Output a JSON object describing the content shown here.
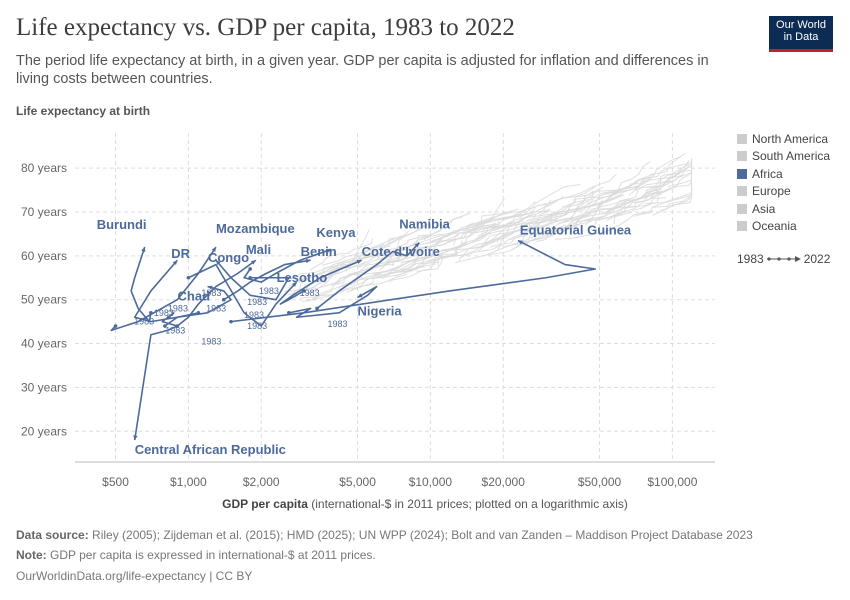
{
  "header": {
    "title": "Life expectancy vs. GDP per capita, 1983 to 2022",
    "subtitle": "The period life expectancy at birth, in a given year. GDP per capita is adjusted for inflation and differences in living costs between countries.",
    "logo_line1": "Our World",
    "logo_line2": "in Data"
  },
  "chart_data": {
    "type": "scatter",
    "ylabel": "Life expectancy at birth",
    "xlabel_bold": "GDP per capita",
    "xlabel_rest": " (international-$ in 2011 prices; plotted on a logarithmic axis)",
    "x_scale": "log",
    "xlim": [
      340,
      150000
    ],
    "ylim": [
      13,
      88
    ],
    "x_ticks": [
      {
        "value": 500,
        "label": "$500"
      },
      {
        "value": 1000,
        "label": "$1,000"
      },
      {
        "value": 2000,
        "label": "$2,000"
      },
      {
        "value": 5000,
        "label": "$5,000"
      },
      {
        "value": 10000,
        "label": "$10,000"
      },
      {
        "value": 20000,
        "label": "$20,000"
      },
      {
        "value": 50000,
        "label": "$50,000"
      },
      {
        "value": 100000,
        "label": "$100,000"
      }
    ],
    "y_ticks": [
      {
        "value": 20,
        "label": "20 years"
      },
      {
        "value": 30,
        "label": "30 years"
      },
      {
        "value": 40,
        "label": "40 years"
      },
      {
        "value": 50,
        "label": "50 years"
      },
      {
        "value": 60,
        "label": "60 years"
      },
      {
        "value": 70,
        "label": "70 years"
      },
      {
        "value": 80,
        "label": "80 years"
      }
    ],
    "grid": true,
    "legend_position": "right",
    "legend": [
      {
        "name": "North America",
        "color": "#cccccc"
      },
      {
        "name": "South America",
        "color": "#cccccc"
      },
      {
        "name": "Africa",
        "color": "#4c6a9c"
      },
      {
        "name": "Europe",
        "color": "#cccccc"
      },
      {
        "name": "Asia",
        "color": "#cccccc"
      },
      {
        "name": "Oceania",
        "color": "#cccccc"
      }
    ],
    "time_start": "1983",
    "time_end": "2022",
    "highlight_color": "#4c6a9c",
    "background_color": "#d9d9d9",
    "series": [
      {
        "name": "Central African Republic",
        "x": [
          830,
          870,
          780,
          900,
          820,
          700,
          600
        ],
        "y": [
          46,
          47,
          45,
          44,
          43,
          42,
          18
        ]
      },
      {
        "name": "Equatorial Guinea",
        "x": [
          1500,
          3000,
          12000,
          30000,
          48000,
          36000,
          23000
        ],
        "y": [
          45,
          47,
          52,
          55,
          57,
          58,
          63.5
        ]
      },
      {
        "name": "Nigeria",
        "x": [
          2600,
          3200,
          2800,
          4200,
          5500,
          6000,
          5000
        ],
        "y": [
          47,
          48,
          46,
          47,
          51,
          53,
          50.5
        ]
      },
      {
        "name": "Namibia",
        "x": [
          3400,
          4200,
          6000,
          7000,
          8000,
          9000
        ],
        "y": [
          48,
          52,
          58,
          61,
          60,
          63
        ]
      },
      {
        "name": "Cote d'Ivoire",
        "x": [
          3000,
          2600,
          2400,
          2700,
          3500,
          5200
        ],
        "y": [
          52,
          50,
          49,
          51,
          55,
          59
        ]
      },
      {
        "name": "Kenya",
        "x": [
          1800,
          1700,
          2000,
          2300,
          2900,
          3900
        ],
        "y": [
          57,
          55,
          54,
          56,
          59,
          61.5
        ]
      },
      {
        "name": "Benin",
        "x": [
          1400,
          1600,
          1800,
          2100,
          2500,
          3200
        ],
        "y": [
          50,
          52,
          54,
          56,
          58,
          59
        ]
      },
      {
        "name": "Lesotho",
        "x": [
          1000,
          1300,
          1700,
          2000,
          2300,
          2800
        ],
        "y": [
          55,
          58,
          47,
          44,
          49,
          54
        ]
      },
      {
        "name": "Mali",
        "x": [
          900,
          1000,
          1100,
          1300,
          1600,
          1900
        ],
        "y": [
          44,
          46,
          49,
          53,
          56,
          59
        ]
      },
      {
        "name": "Congo",
        "x": [
          1800,
          2600,
          2300,
          1800,
          1500,
          1300
        ],
        "y": [
          55,
          55,
          50,
          51,
          55,
          59
        ]
      },
      {
        "name": "Chad",
        "x": [
          800,
          900,
          1200,
          1500,
          1400,
          1200
        ],
        "y": [
          44,
          46,
          47,
          50,
          52,
          53
        ]
      },
      {
        "name": "Mozambique",
        "x": [
          500,
          480,
          620,
          900,
          1100,
          1300
        ],
        "y": [
          44,
          43,
          45,
          50,
          56,
          62
        ]
      },
      {
        "name": "DR Congo",
        "x": [
          1100,
          900,
          700,
          600,
          700,
          900
        ],
        "y": [
          47,
          46,
          45,
          46,
          52,
          59
        ]
      },
      {
        "name": "Burundi",
        "x": [
          700,
          690,
          620,
          580,
          600,
          660
        ],
        "y": [
          47,
          45,
          48,
          52,
          55,
          62
        ]
      }
    ],
    "annotations": [
      "Burundi",
      "DR Congo",
      "Mozambique",
      "Mali",
      "Chad",
      "Benin",
      "Kenya",
      "Cote d'Ivoire",
      "Namibia",
      "Lesotho",
      "Nigeria",
      "Equatorial Guinea",
      "Central African Republic"
    ],
    "start_markers": [
      {
        "label": "1983",
        "x": 1100,
        "y": 51.5
      },
      {
        "label": "1983",
        "x": 2800,
        "y": 51.5
      },
      {
        "label": "1983",
        "x": 3650,
        "y": 44.5
      },
      {
        "label": "1983",
        "x": 1900,
        "y": 52
      },
      {
        "label": "1983",
        "x": 1700,
        "y": 49.5
      },
      {
        "label": "1983",
        "x": 1150,
        "y": 48
      },
      {
        "label": "1983",
        "x": 800,
        "y": 48
      },
      {
        "label": "1983",
        "x": 1650,
        "y": 46.5
      },
      {
        "label": "1983",
        "x": 700,
        "y": 47
      },
      {
        "label": "1983",
        "x": 580,
        "y": 45
      },
      {
        "label": "1983",
        "x": 1700,
        "y": 44
      },
      {
        "label": "1983",
        "x": 780,
        "y": 43
      },
      {
        "label": "1983",
        "x": 1100,
        "y": 40.5
      }
    ]
  },
  "footer": {
    "source_label": "Data source:",
    "source_text": " Riley (2005); Zijdeman et al. (2015); HMD (2025); UN WPP (2024); Bolt and van Zanden – Maddison Project Database 2023",
    "note_label": "Note:",
    "note_text": " GDP per capita is expressed in international-$ at 2011 prices.",
    "url": "OurWorldinData.org/life-expectancy | CC BY"
  }
}
